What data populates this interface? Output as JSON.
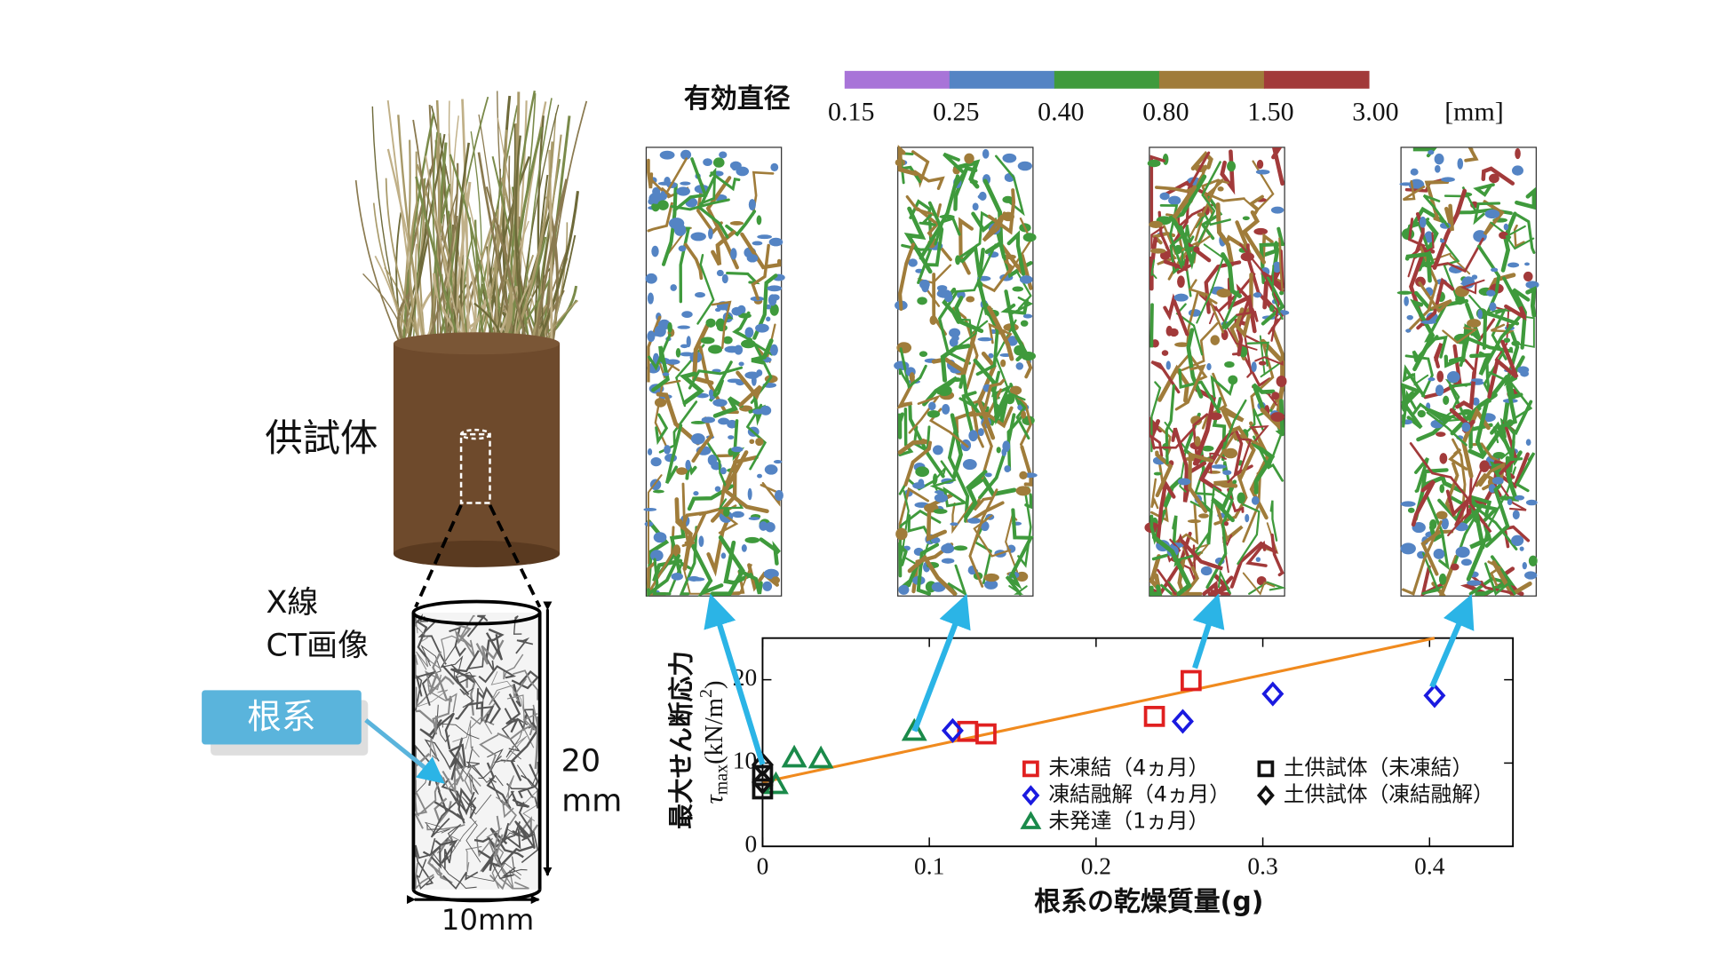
{
  "specimen_label": "供試体",
  "xray_label": "X線",
  "ct_label": "CT画像",
  "root_label": "根系",
  "height_value": "20",
  "height_unit": "mm",
  "width_label": "10mm",
  "colorbar": {
    "title": "有効直径",
    "ticks": [
      0.15,
      0.25,
      {
        "value": 0.4,
        "label": "0.40"
      },
      {
        "value": 0.8,
        "label": "0.80"
      },
      {
        "value": 1.5,
        "label": "1.50"
      },
      {
        "value": 3,
        "label": "3.00"
      }
    ],
    "colors": [
      "#a874d8",
      "#5484c4",
      "#3f9a3c",
      "#a07c3a",
      "#a23a3a"
    ],
    "unit": "[mm]"
  },
  "chart_data": {
    "type": "scatter",
    "x_label": "根系の乾燥質量(g)",
    "y_label": "最大せん断応力",
    "y_label_parts": [
      "τ",
      "max",
      "(kN/m",
      "2",
      ")"
    ],
    "xlim": [
      0,
      0.45
    ],
    "xticks": [
      0,
      0.1,
      0.2,
      0.3,
      0.4
    ],
    "ylim": [
      0,
      25
    ],
    "yticks": [
      0,
      10,
      20
    ],
    "series": [
      {
        "name": "未凍結（4ヵ月）",
        "color": "#e02020",
        "marker": "square",
        "x": [
          0.123,
          0.134,
          0.235,
          0.257
        ],
        "values": [
          13.8,
          13.5,
          15.6,
          19.9
        ]
      },
      {
        "name": "凍結融解（4ヵ月）",
        "color": "#1a1ae0",
        "marker": "diamond",
        "x": [
          0.114,
          0.252,
          0.306,
          0.403
        ],
        "values": [
          13.9,
          15.0,
          18.3,
          18.1
        ]
      },
      {
        "name": "未発達（1ヵ月）",
        "color": "#1a8a4a",
        "marker": "triangle",
        "x": [
          0.091,
          0.019,
          0.035,
          0.008
        ],
        "values": [
          13.8,
          10.6,
          10.5,
          7.4
        ]
      },
      {
        "name": "土供試体（未凍結）",
        "color": "#111111",
        "marker": "square",
        "x": [
          0,
          0
        ],
        "values": [
          6.9,
          8.5
        ]
      },
      {
        "name": "土供試体（凍結融解）",
        "color": "#111111",
        "marker": "diamond",
        "x": [
          0,
          0
        ],
        "values": [
          9.8,
          7.7
        ]
      }
    ],
    "fit_line": {
      "color": "#f08a1e",
      "x": [
        0,
        0.403
      ],
      "values": [
        7.7,
        25
      ]
    }
  }
}
